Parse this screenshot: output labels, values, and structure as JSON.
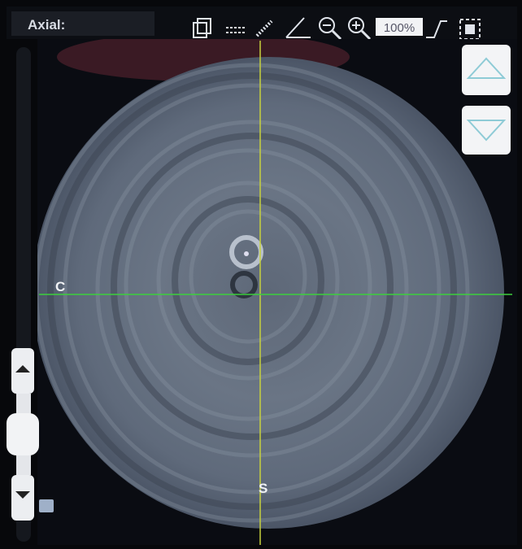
{
  "header": {
    "title": "Axial:",
    "zoom": "100%"
  },
  "view": {
    "left_label": "C",
    "bottom_label": "S"
  }
}
